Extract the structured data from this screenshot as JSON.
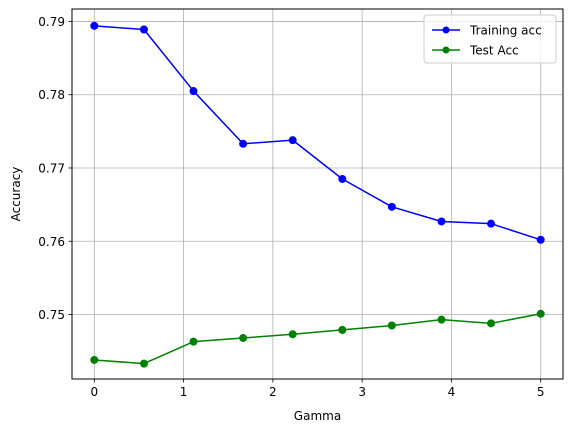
{
  "chart_data": {
    "type": "line",
    "xlabel": "Gamma",
    "ylabel": "Accuracy",
    "xlim": [
      -0.25,
      5.25
    ],
    "ylim": [
      0.7412,
      0.7917
    ],
    "grid": true,
    "legend_position": "top-right",
    "x_ticks": [
      0,
      1,
      2,
      3,
      4,
      5
    ],
    "x_tick_labels": [
      "0",
      "1",
      "2",
      "3",
      "4",
      "5"
    ],
    "y_ticks": [
      0.75,
      0.76,
      0.77,
      0.78,
      0.79
    ],
    "y_tick_labels": [
      "0.75",
      "0.76",
      "0.77",
      "0.78",
      "0.79"
    ],
    "x": [
      0,
      0.556,
      1.111,
      1.667,
      2.222,
      2.778,
      3.333,
      3.889,
      4.444,
      5.0
    ],
    "series": [
      {
        "name": "Training acc",
        "color": "#0000ff",
        "marker": "circle",
        "values": [
          0.7894,
          0.7889,
          0.7805,
          0.7733,
          0.7738,
          0.7685,
          0.7647,
          0.7627,
          0.7624,
          0.7602
        ]
      },
      {
        "name": "Test Acc",
        "color": "#008000",
        "marker": "circle",
        "values": [
          0.7438,
          0.7433,
          0.7463,
          0.7468,
          0.7473,
          0.7479,
          0.7485,
          0.7493,
          0.7488,
          0.7501
        ]
      }
    ]
  }
}
